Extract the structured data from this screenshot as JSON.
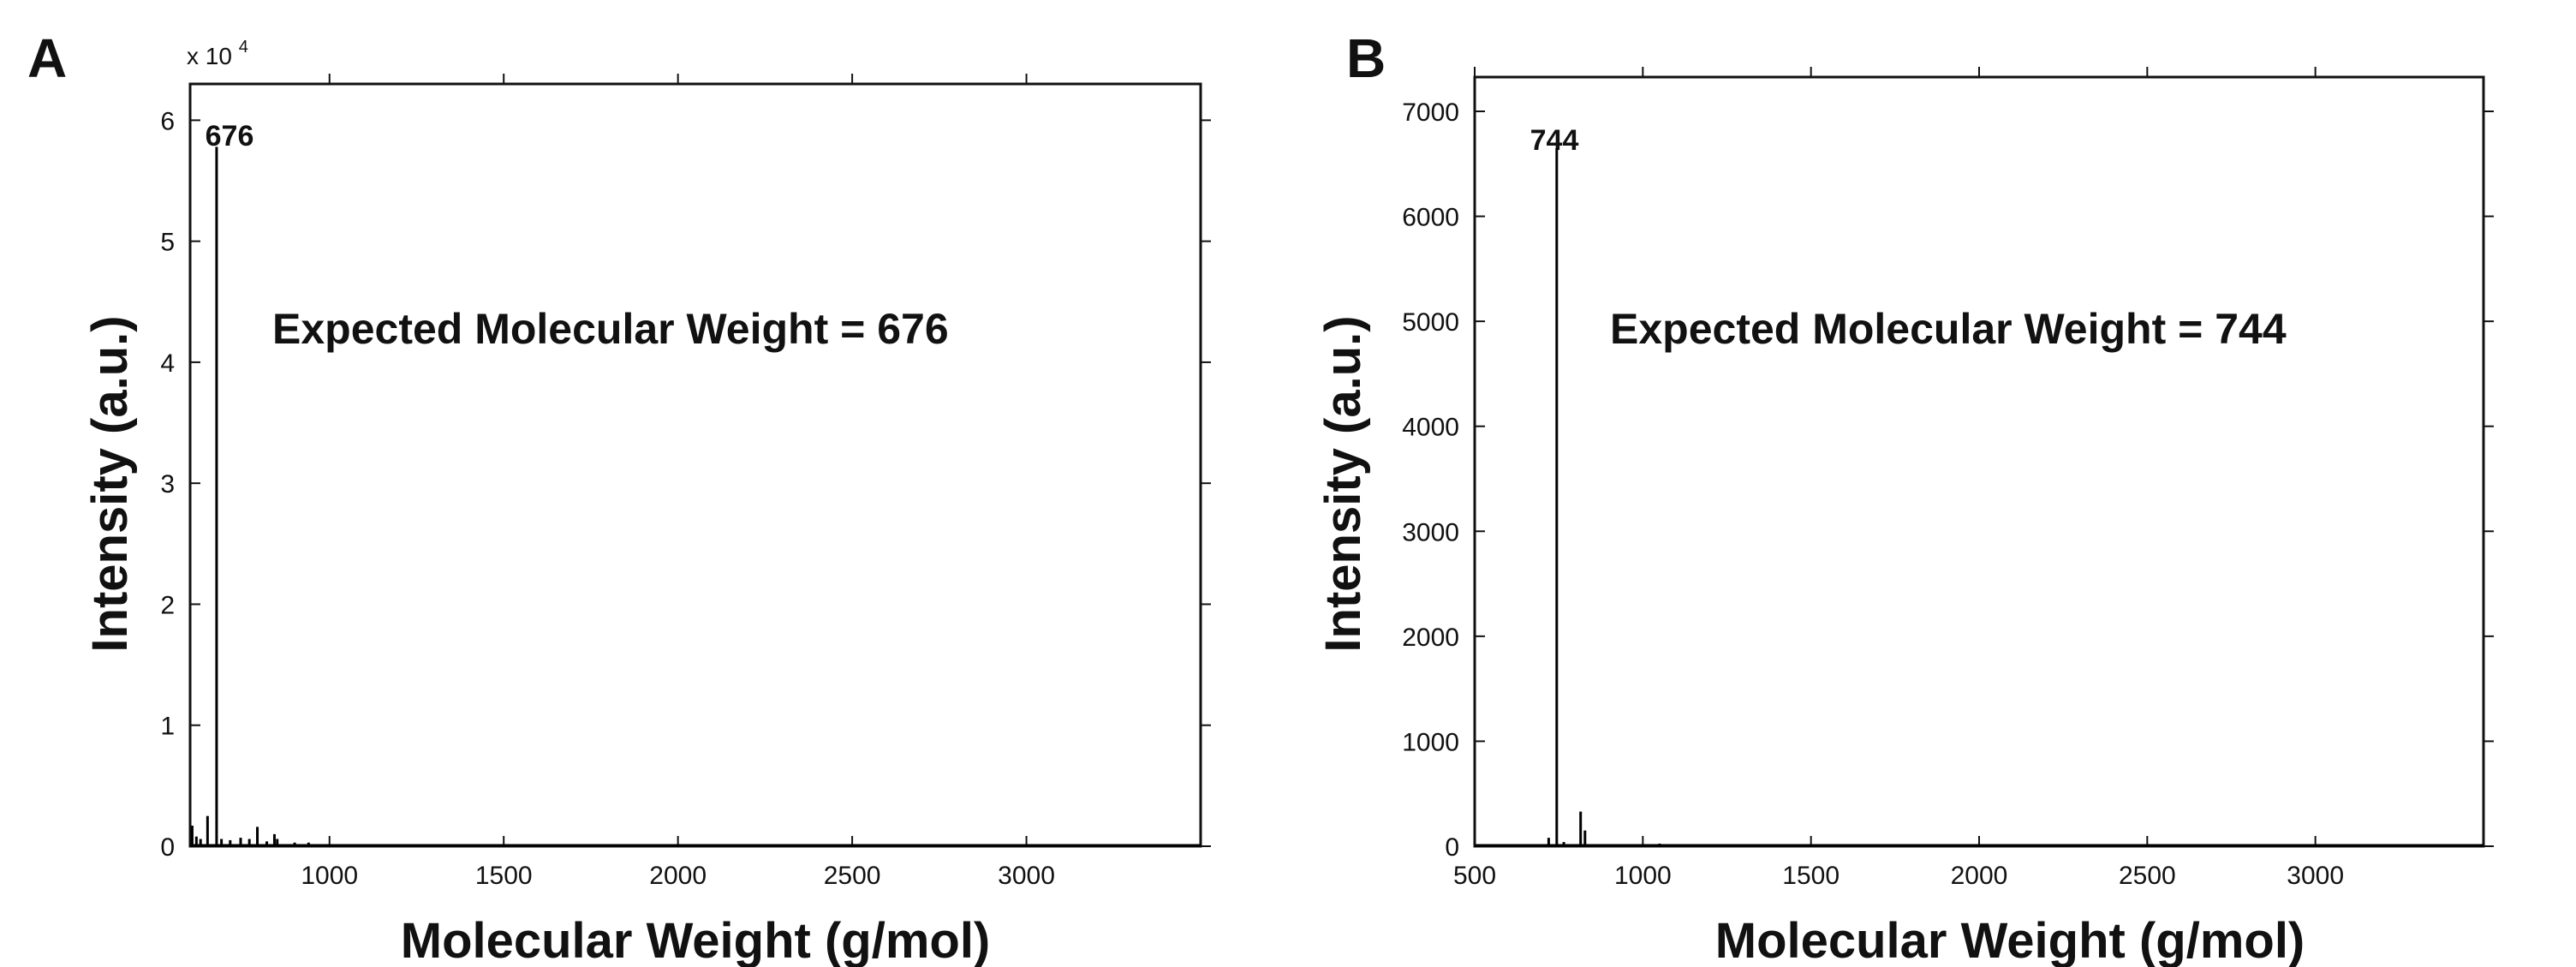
{
  "colors": {
    "axis": "#111111",
    "trace": "#000000",
    "background": "#ffffff"
  },
  "chart_data": [
    {
      "panel_label": "A",
      "type": "line",
      "xlabel": "Molecular Weight (g/mol)",
      "ylabel": "Intensity (a.u.)",
      "xlim": [
        600,
        3500
      ],
      "ylim": [
        0,
        6.3
      ],
      "y_multiplier": "x 10",
      "y_multiplier_exponent": "4",
      "xticks": [
        1000,
        1500,
        2000,
        2500,
        3000
      ],
      "yticks": [
        0,
        1,
        2,
        3,
        4,
        5,
        6
      ],
      "annotation": "Expected Molecular Weight = 676",
      "peak_label": "676",
      "grid": false,
      "peaks": [
        {
          "x": 606,
          "y": 0.17
        },
        {
          "x": 618,
          "y": 0.08
        },
        {
          "x": 630,
          "y": 0.06
        },
        {
          "x": 650,
          "y": 0.25
        },
        {
          "x": 676,
          "y": 5.78
        },
        {
          "x": 690,
          "y": 0.06
        },
        {
          "x": 715,
          "y": 0.05
        },
        {
          "x": 745,
          "y": 0.07
        },
        {
          "x": 770,
          "y": 0.06
        },
        {
          "x": 793,
          "y": 0.16
        },
        {
          "x": 820,
          "y": 0.04
        },
        {
          "x": 842,
          "y": 0.1
        },
        {
          "x": 850,
          "y": 0.06
        },
        {
          "x": 900,
          "y": 0.03
        },
        {
          "x": 940,
          "y": 0.03
        }
      ]
    },
    {
      "panel_label": "B",
      "type": "line",
      "xlabel": "Molecular Weight (g/mol)",
      "ylabel": "Intensity (a.u.)",
      "xlim": [
        500,
        3500
      ],
      "ylim": [
        0,
        7000
      ],
      "xticks": [
        500,
        1000,
        1500,
        2000,
        2500,
        3000
      ],
      "yticks": [
        0,
        1000,
        2000,
        3000,
        4000,
        5000,
        6000,
        7000
      ],
      "annotation": "Expected Molecular Weight = 744",
      "peak_label": "744",
      "grid": false,
      "peaks": [
        {
          "x": 720,
          "y": 80
        },
        {
          "x": 744,
          "y": 6650
        },
        {
          "x": 765,
          "y": 40
        },
        {
          "x": 815,
          "y": 330
        },
        {
          "x": 828,
          "y": 150
        },
        {
          "x": 1050,
          "y": 25
        },
        {
          "x": 2400,
          "y": 15
        },
        {
          "x": 3300,
          "y": 15
        }
      ]
    }
  ]
}
